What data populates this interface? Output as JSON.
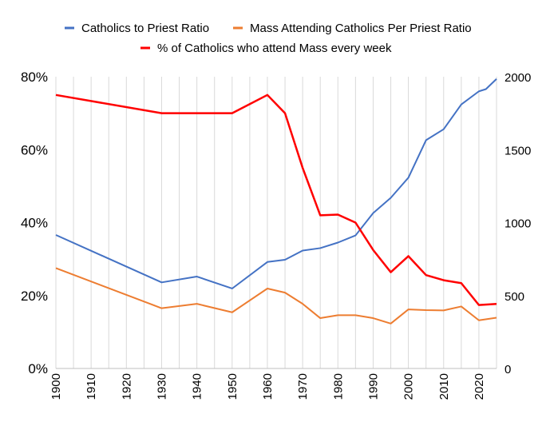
{
  "chart_data": {
    "type": "line",
    "title": "",
    "legend": {
      "placement": "top",
      "entries": [
        "Catholics to Priest Ratio",
        "Mass Attending Catholics Per Priest Ratio",
        "% of Catholics who attend Mass every week"
      ]
    },
    "x_ticks": [
      "1900",
      "1910",
      "1920",
      "1930",
      "1940",
      "1950",
      "1960",
      "1970",
      "1980",
      "1990",
      "2000",
      "2010",
      "2020"
    ],
    "xlim": [
      1900,
      2025
    ],
    "y_left": {
      "label": "",
      "lim": [
        0,
        80
      ],
      "ticks": [
        "0%",
        "20%",
        "40%",
        "60%",
        "80%"
      ],
      "tick_values": [
        0,
        20,
        40,
        60,
        80
      ]
    },
    "y_right": {
      "label": "",
      "lim": [
        0,
        2000
      ],
      "ticks": [
        "0",
        "500",
        "1000",
        "1500",
        "2000"
      ],
      "tick_values": [
        0,
        500,
        1000,
        1500,
        2000
      ]
    },
    "grid": {
      "vertical_minor_years": 5,
      "horizontal": false
    },
    "series": [
      {
        "name": "Catholics to Priest Ratio",
        "axis": "right",
        "color": "#4472C4",
        "x": [
          1900,
          1930,
          1940,
          1950,
          1960,
          1965,
          1970,
          1975,
          1980,
          1985,
          1990,
          1995,
          2000,
          2005,
          2010,
          2015,
          2020,
          2022,
          2025
        ],
        "values": [
          915,
          590,
          630,
          548,
          730,
          745,
          808,
          825,
          863,
          912,
          1065,
          1170,
          1308,
          1565,
          1640,
          1810,
          1900,
          1915,
          1985
        ]
      },
      {
        "name": "Mass Attending Catholics Per Priest Ratio",
        "axis": "right",
        "color": "#ED7D31",
        "x": [
          1900,
          1930,
          1940,
          1950,
          1960,
          1965,
          1970,
          1975,
          1980,
          1985,
          1990,
          1995,
          2000,
          2005,
          2010,
          2015,
          2020,
          2025
        ],
        "values": [
          688,
          413,
          443,
          385,
          548,
          520,
          443,
          345,
          365,
          365,
          345,
          308,
          405,
          400,
          398,
          425,
          330,
          348
        ]
      },
      {
        "name": "% of Catholics who attend Mass every week",
        "axis": "left",
        "color": "#FF0000",
        "x": [
          1900,
          1930,
          1940,
          1950,
          1960,
          1965,
          1970,
          1975,
          1980,
          1985,
          1990,
          1995,
          2000,
          2005,
          2010,
          2015,
          2020,
          2025
        ],
        "values": [
          75,
          70,
          70,
          70,
          75,
          70,
          55,
          42,
          42.2,
          40,
          32.5,
          26.4,
          30.8,
          25.6,
          24.2,
          23.4,
          17.4,
          17.7
        ]
      }
    ]
  }
}
